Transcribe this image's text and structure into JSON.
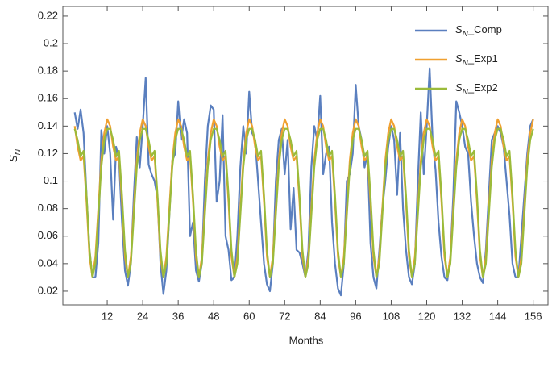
{
  "chart_data": {
    "type": "line",
    "xlabel": "Months",
    "ylabel": "SN",
    "xlim": [
      -3,
      161
    ],
    "ylim": [
      0.01,
      0.227
    ],
    "xticks": [
      12,
      24,
      36,
      48,
      60,
      72,
      84,
      96,
      108,
      120,
      132,
      144,
      156
    ],
    "yticks": [
      0.02,
      0.04,
      0.06,
      0.08,
      0.1,
      0.12,
      0.14,
      0.16,
      0.18,
      0.2,
      0.22
    ],
    "legend": "upper right",
    "x": [
      1,
      2,
      3,
      4,
      5,
      6,
      7,
      8,
      9,
      10,
      11,
      12,
      13,
      14,
      15,
      16,
      17,
      18,
      19,
      20,
      21,
      22,
      23,
      24,
      25,
      26,
      27,
      28,
      29,
      30,
      31,
      32,
      33,
      34,
      35,
      36,
      37,
      38,
      39,
      40,
      41,
      42,
      43,
      44,
      45,
      46,
      47,
      48,
      49,
      50,
      51,
      52,
      53,
      54,
      55,
      56,
      57,
      58,
      59,
      60,
      61,
      62,
      63,
      64,
      65,
      66,
      67,
      68,
      69,
      70,
      71,
      72,
      73,
      74,
      75,
      76,
      77,
      78,
      79,
      80,
      81,
      82,
      83,
      84,
      85,
      86,
      87,
      88,
      89,
      90,
      91,
      92,
      93,
      94,
      95,
      96,
      97,
      98,
      99,
      100,
      101,
      102,
      103,
      104,
      105,
      106,
      107,
      108,
      109,
      110,
      111,
      112,
      113,
      114,
      115,
      116,
      117,
      118,
      119,
      120,
      121,
      122,
      123,
      124,
      125,
      126,
      127,
      128,
      129,
      130,
      131,
      132,
      133,
      134,
      135,
      136,
      137,
      138,
      139,
      140,
      141,
      142,
      143,
      144,
      145,
      146,
      147,
      148,
      149,
      150,
      151,
      152,
      153,
      154,
      155,
      156
    ],
    "series": [
      {
        "name": "SN_Comp",
        "color": "#5a7fbf",
        "values": [
          0.15,
          0.138,
          0.152,
          0.135,
          0.09,
          0.05,
          0.03,
          0.03,
          0.055,
          0.137,
          0.12,
          0.14,
          0.12,
          0.072,
          0.125,
          0.115,
          0.07,
          0.035,
          0.024,
          0.04,
          0.09,
          0.132,
          0.11,
          0.14,
          0.175,
          0.112,
          0.105,
          0.1,
          0.088,
          0.04,
          0.018,
          0.035,
          0.075,
          0.115,
          0.12,
          0.158,
          0.13,
          0.145,
          0.135,
          0.06,
          0.07,
          0.035,
          0.027,
          0.04,
          0.1,
          0.14,
          0.155,
          0.152,
          0.085,
          0.1,
          0.148,
          0.06,
          0.05,
          0.028,
          0.03,
          0.06,
          0.11,
          0.14,
          0.12,
          0.165,
          0.135,
          0.13,
          0.1,
          0.07,
          0.04,
          0.025,
          0.02,
          0.04,
          0.1,
          0.13,
          0.138,
          0.105,
          0.13,
          0.065,
          0.095,
          0.05,
          0.048,
          0.04,
          0.03,
          0.05,
          0.11,
          0.14,
          0.13,
          0.162,
          0.105,
          0.12,
          0.125,
          0.07,
          0.04,
          0.022,
          0.017,
          0.04,
          0.1,
          0.105,
          0.12,
          0.17,
          0.14,
          0.13,
          0.11,
          0.12,
          0.055,
          0.03,
          0.022,
          0.05,
          0.08,
          0.1,
          0.125,
          0.14,
          0.13,
          0.09,
          0.135,
          0.08,
          0.05,
          0.03,
          0.025,
          0.04,
          0.1,
          0.15,
          0.105,
          0.14,
          0.182,
          0.13,
          0.108,
          0.07,
          0.045,
          0.03,
          0.028,
          0.045,
          0.09,
          0.158,
          0.15,
          0.14,
          0.125,
          0.12,
          0.085,
          0.06,
          0.04,
          0.03,
          0.026,
          0.05,
          0.09,
          0.13,
          0.135,
          0.14,
          0.135,
          0.125,
          0.1,
          0.075,
          0.04,
          0.03,
          0.03,
          0.06,
          0.09,
          0.12,
          0.14,
          0.145
        ]
      },
      {
        "name": "SN_Exp1",
        "color": "#f0a030",
        "values": [
          0.14,
          0.125,
          0.115,
          0.118,
          0.085,
          0.045,
          0.03,
          0.045,
          0.08,
          0.115,
          0.135,
          0.145,
          0.14,
          0.125,
          0.115,
          0.118,
          0.085,
          0.045,
          0.03,
          0.045,
          0.08,
          0.115,
          0.135,
          0.145,
          0.14,
          0.125,
          0.115,
          0.118,
          0.085,
          0.045,
          0.03,
          0.045,
          0.08,
          0.115,
          0.135,
          0.145,
          0.14,
          0.125,
          0.115,
          0.118,
          0.085,
          0.045,
          0.03,
          0.045,
          0.08,
          0.115,
          0.135,
          0.145,
          0.14,
          0.125,
          0.115,
          0.118,
          0.085,
          0.045,
          0.03,
          0.045,
          0.08,
          0.115,
          0.135,
          0.145,
          0.14,
          0.125,
          0.115,
          0.118,
          0.085,
          0.045,
          0.03,
          0.045,
          0.08,
          0.115,
          0.135,
          0.145,
          0.14,
          0.125,
          0.115,
          0.118,
          0.085,
          0.045,
          0.03,
          0.045,
          0.08,
          0.115,
          0.135,
          0.145,
          0.14,
          0.125,
          0.115,
          0.118,
          0.085,
          0.045,
          0.03,
          0.045,
          0.08,
          0.115,
          0.135,
          0.145,
          0.14,
          0.125,
          0.115,
          0.118,
          0.085,
          0.045,
          0.03,
          0.045,
          0.08,
          0.115,
          0.135,
          0.145,
          0.14,
          0.125,
          0.115,
          0.118,
          0.085,
          0.045,
          0.03,
          0.045,
          0.08,
          0.115,
          0.135,
          0.145,
          0.14,
          0.125,
          0.115,
          0.118,
          0.085,
          0.045,
          0.03,
          0.045,
          0.08,
          0.115,
          0.135,
          0.145,
          0.14,
          0.125,
          0.115,
          0.118,
          0.085,
          0.045,
          0.03,
          0.045,
          0.08,
          0.115,
          0.135,
          0.145,
          0.14,
          0.125,
          0.115,
          0.118,
          0.085,
          0.045,
          0.03,
          0.045,
          0.08,
          0.115,
          0.135,
          0.145
        ]
      },
      {
        "name": "SN_Exp2",
        "color": "#9bbb3a",
        "values": [
          0.138,
          0.13,
          0.118,
          0.122,
          0.09,
          0.05,
          0.03,
          0.04,
          0.075,
          0.11,
          0.13,
          0.138,
          0.138,
          0.13,
          0.118,
          0.122,
          0.09,
          0.05,
          0.03,
          0.04,
          0.075,
          0.11,
          0.13,
          0.138,
          0.138,
          0.13,
          0.118,
          0.122,
          0.09,
          0.05,
          0.03,
          0.04,
          0.075,
          0.11,
          0.13,
          0.138,
          0.138,
          0.13,
          0.118,
          0.122,
          0.09,
          0.05,
          0.03,
          0.04,
          0.075,
          0.11,
          0.13,
          0.138,
          0.138,
          0.13,
          0.118,
          0.122,
          0.09,
          0.05,
          0.03,
          0.04,
          0.075,
          0.11,
          0.13,
          0.138,
          0.138,
          0.13,
          0.118,
          0.122,
          0.09,
          0.05,
          0.03,
          0.04,
          0.075,
          0.11,
          0.13,
          0.138,
          0.138,
          0.13,
          0.118,
          0.122,
          0.09,
          0.05,
          0.03,
          0.04,
          0.075,
          0.11,
          0.13,
          0.138,
          0.138,
          0.13,
          0.118,
          0.122,
          0.09,
          0.05,
          0.03,
          0.04,
          0.075,
          0.11,
          0.13,
          0.138,
          0.138,
          0.13,
          0.118,
          0.122,
          0.09,
          0.05,
          0.03,
          0.04,
          0.075,
          0.11,
          0.13,
          0.138,
          0.138,
          0.13,
          0.118,
          0.122,
          0.09,
          0.05,
          0.03,
          0.04,
          0.075,
          0.11,
          0.13,
          0.138,
          0.138,
          0.13,
          0.118,
          0.122,
          0.09,
          0.05,
          0.03,
          0.04,
          0.075,
          0.11,
          0.13,
          0.138,
          0.138,
          0.13,
          0.118,
          0.122,
          0.09,
          0.05,
          0.03,
          0.04,
          0.075,
          0.11,
          0.13,
          0.138,
          0.138,
          0.13,
          0.118,
          0.122,
          0.09,
          0.05,
          0.03,
          0.04,
          0.075,
          0.11,
          0.13,
          0.138
        ]
      }
    ]
  }
}
